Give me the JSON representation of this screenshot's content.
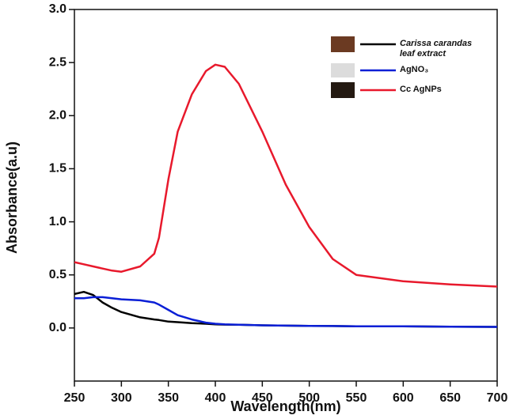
{
  "chart_data": {
    "type": "line",
    "x_label": "Wavelength(nm)",
    "y_label": "Absorbance(a.u)",
    "x": [
      250,
      260,
      270,
      280,
      290,
      300,
      320,
      335,
      340,
      350,
      360,
      375,
      390,
      400,
      410,
      425,
      450,
      475,
      500,
      525,
      550,
      600,
      650,
      700
    ],
    "series": [
      {
        "name": "Carissa carandas leaf extract",
        "color": "#000000",
        "values": [
          0.32,
          0.34,
          0.31,
          0.24,
          0.19,
          0.15,
          0.1,
          0.08,
          0.075,
          0.06,
          0.055,
          0.045,
          0.04,
          0.035,
          0.032,
          0.03,
          0.025,
          0.022,
          0.02,
          0.018,
          0.016,
          0.015,
          0.012,
          0.01
        ]
      },
      {
        "name": "AgNO₃",
        "color": "#0a1fd6",
        "values": [
          0.28,
          0.28,
          0.29,
          0.29,
          0.28,
          0.27,
          0.26,
          0.24,
          0.22,
          0.17,
          0.12,
          0.08,
          0.05,
          0.04,
          0.035,
          0.03,
          0.025,
          0.022,
          0.02,
          0.018,
          0.016,
          0.015,
          0.012,
          0.01
        ]
      },
      {
        "name": "Cc AgNPs",
        "color": "#e8192c",
        "values": [
          0.62,
          0.6,
          0.58,
          0.56,
          0.54,
          0.53,
          0.58,
          0.7,
          0.85,
          1.4,
          1.85,
          2.2,
          2.42,
          2.48,
          2.46,
          2.3,
          1.85,
          1.35,
          0.95,
          0.65,
          0.5,
          0.44,
          0.41,
          0.39
        ]
      }
    ],
    "xlim": [
      250,
      700
    ],
    "xticks": [
      250,
      300,
      350,
      400,
      450,
      500,
      550,
      600,
      650,
      700
    ],
    "ylim": [
      -0.5,
      3.0
    ],
    "yticks": [
      {
        "value": 0,
        "label": "0.0"
      },
      0.5,
      {
        "value": 1,
        "label": "1.0"
      },
      1.5,
      {
        "value": 2,
        "label": "2.0"
      },
      2.5,
      {
        "value": 3,
        "label": "3.0"
      }
    ]
  }
}
